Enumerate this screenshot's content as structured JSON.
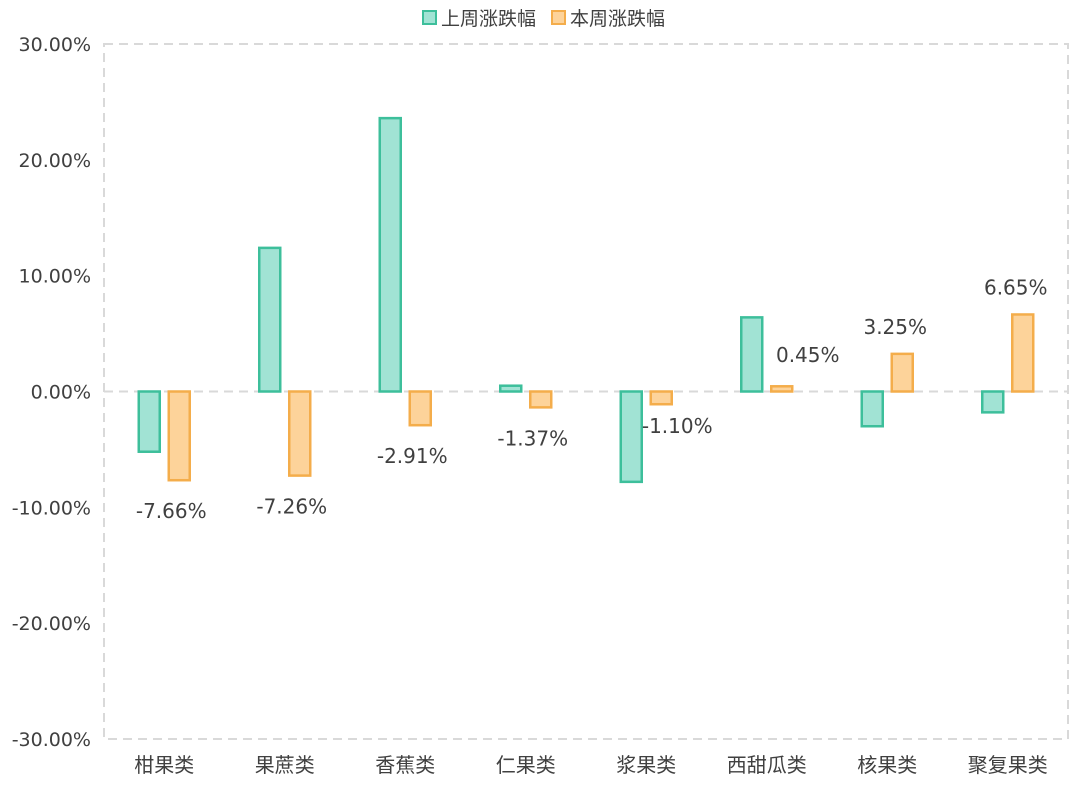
{
  "chart_data": {
    "type": "bar",
    "title": "",
    "xlabel": "",
    "ylabel": "",
    "categories": [
      "柑果类",
      "果蔗类",
      "香蕉类",
      "仁果类",
      "浆果类",
      "西甜瓜类",
      "核果类",
      "聚复果类"
    ],
    "series": [
      {
        "name": "上周涨跌幅",
        "values": [
          -5.2,
          12.4,
          23.6,
          0.5,
          -7.8,
          6.4,
          -3.0,
          -1.8
        ],
        "fill": "#a1e3d4",
        "stroke": "#3dbf9b",
        "data_labels": [
          "",
          "",
          "",
          "",
          "",
          "",
          "",
          ""
        ]
      },
      {
        "name": "本周涨跌幅",
        "values": [
          -7.66,
          -7.26,
          -2.91,
          -1.37,
          -1.1,
          0.45,
          3.25,
          6.65
        ],
        "fill": "#fdd39a",
        "stroke": "#f4ad4b",
        "data_labels": [
          "-7.66%",
          "-7.26%",
          "-2.91%",
          "-1.37%",
          "-1.10%",
          "0.45%",
          "3.25%",
          "6.65%"
        ]
      }
    ],
    "ylim": [
      -30,
      30
    ],
    "yticks": [
      30,
      20,
      10,
      0,
      -10,
      -20,
      -30
    ],
    "ytick_labels": [
      "30.00%",
      "20.00%",
      "10.00%",
      "0.00%",
      "-10.00%",
      "-20.00%",
      "-30.00%"
    ],
    "grid": false,
    "legend_position": "top-center",
    "frame_color": "#d9d9d9",
    "text_color": "#404040"
  }
}
